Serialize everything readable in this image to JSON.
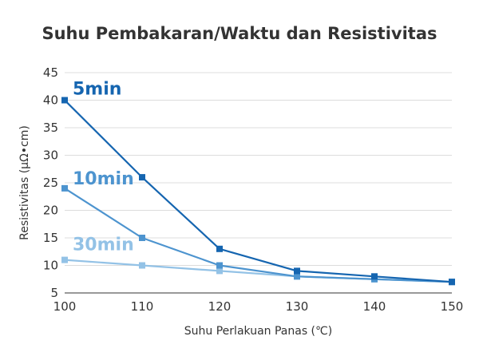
{
  "chart_data": {
    "type": "line",
    "title": "Suhu Pembakaran/Waktu dan Resistivitas",
    "xlabel": "Suhu Perlakuan Panas (℃)",
    "ylabel": "Resistivitas (μΩ•cm)",
    "x": [
      100,
      110,
      120,
      130,
      140,
      150
    ],
    "xlim": [
      100,
      150
    ],
    "ylim": [
      5,
      45
    ],
    "xticks": [
      100,
      110,
      120,
      130,
      140,
      150
    ],
    "yticks": [
      5,
      10,
      15,
      20,
      25,
      30,
      35,
      40,
      45
    ],
    "grid": true,
    "series": [
      {
        "name": "5min",
        "color": "#1565b0",
        "values": [
          40,
          26,
          13,
          9,
          8,
          7
        ]
      },
      {
        "name": "10min",
        "color": "#4d94cf",
        "values": [
          24,
          15,
          10,
          8,
          7.5,
          7
        ]
      },
      {
        "name": "30min",
        "color": "#93c2e6",
        "values": [
          11,
          10,
          9,
          8,
          7.5,
          7
        ]
      }
    ]
  }
}
